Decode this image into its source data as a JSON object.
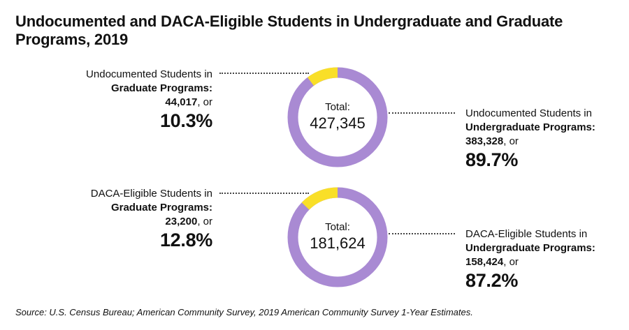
{
  "title": "Undocumented and DACA-Eligible Students in Undergraduate and Graduate Programs, 2019",
  "source": "Source: U.S. Census Bureau; American Community Survey, 2019 American Community Survey 1-Year Estimates.",
  "colors": {
    "graduate": "#f9df28",
    "undergraduate": "#a98ad3"
  },
  "chart_data": [
    {
      "type": "pie",
      "total_label": "Total:",
      "total_value": "427,345",
      "slices": [
        {
          "name": "Graduate Programs",
          "value": 44017,
          "percent": 10.3
        },
        {
          "name": "Undergraduate Programs",
          "value": 383328,
          "percent": 89.7
        }
      ],
      "left_label": {
        "line1": "Undocumented Students in",
        "bold": "Graduate Programs:",
        "count": "44,017",
        "suffix": ", or",
        "pct": "10.3%"
      },
      "right_label": {
        "line1": "Undocumented Students in",
        "bold": "Undergraduate Programs:",
        "count": "383,328",
        "suffix": ", or",
        "pct": "89.7%"
      }
    },
    {
      "type": "pie",
      "total_label": "Total:",
      "total_value": "181,624",
      "slices": [
        {
          "name": "Graduate Programs",
          "value": 23200,
          "percent": 12.8
        },
        {
          "name": "Undergraduate Programs",
          "value": 158424,
          "percent": 87.2
        }
      ],
      "left_label": {
        "line1": "DACA-Eligible Students in",
        "bold": "Graduate Programs:",
        "count": "23,200",
        "suffix": ", or",
        "pct": "12.8%"
      },
      "right_label": {
        "line1": "DACA-Eligible Students in",
        "bold": "Undergraduate Programs:",
        "count": "158,424",
        "suffix": ", or",
        "pct": "87.2%"
      }
    }
  ]
}
